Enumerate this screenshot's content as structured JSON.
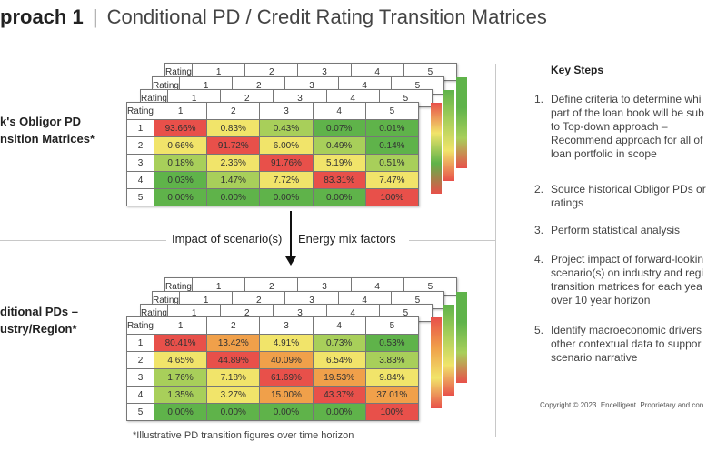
{
  "title": {
    "bold": "proach 1",
    "separator": "|",
    "rest": "Conditional PD / Credit Rating Transition Matrices"
  },
  "top_label": [
    "k's Obligor PD",
    "nsition Matrices*"
  ],
  "bottom_label": [
    "ditional PDs –",
    "ustry/Region*"
  ],
  "middle": {
    "left": "Impact of scenario(s)",
    "right": "Energy mix factors"
  },
  "footnote": "*Illustrative PD transition figures over time horizon",
  "header_label": "Rating",
  "columns": [
    "1",
    "2",
    "3",
    "4",
    "5"
  ],
  "rows": [
    "1",
    "2",
    "3",
    "4",
    "5"
  ],
  "top_matrix": [
    [
      "93.66%",
      "0.83%",
      "0.43%",
      "0.07%",
      "0.01%"
    ],
    [
      "0.66%",
      "91.72%",
      "6.00%",
      "0.49%",
      "0.14%"
    ],
    [
      "0.18%",
      "2.36%",
      "91.76%",
      "5.19%",
      "0.51%"
    ],
    [
      "0.03%",
      "1.47%",
      "7.72%",
      "83.31%",
      "7.47%"
    ],
    [
      "0.00%",
      "0.00%",
      "0.00%",
      "0.00%",
      "100%"
    ]
  ],
  "top_colors": [
    [
      "r",
      "y",
      "lg",
      "g",
      "g"
    ],
    [
      "y",
      "r",
      "y",
      "lg",
      "g"
    ],
    [
      "lg",
      "y",
      "r",
      "y",
      "lg"
    ],
    [
      "g",
      "lg",
      "y",
      "r",
      "y"
    ],
    [
      "g",
      "g",
      "g",
      "g",
      "r"
    ]
  ],
  "bottom_matrix": [
    [
      "80.41%",
      "13.42%",
      "4.91%",
      "0.73%",
      "0.53%"
    ],
    [
      "4.65%",
      "44.89%",
      "40.09%",
      "6.54%",
      "3.83%"
    ],
    [
      "1.76%",
      "7.18%",
      "61.69%",
      "19.53%",
      "9.84%"
    ],
    [
      "1.35%",
      "3.27%",
      "15.00%",
      "43.37%",
      "37.01%"
    ],
    [
      "0.00%",
      "0.00%",
      "0.00%",
      "0.00%",
      "100%"
    ]
  ],
  "bottom_colors": [
    [
      "r",
      "o",
      "y",
      "lg",
      "g"
    ],
    [
      "y",
      "r",
      "o",
      "y",
      "lg"
    ],
    [
      "lg",
      "y",
      "r",
      "o",
      "y"
    ],
    [
      "lg",
      "y",
      "o",
      "r",
      "o"
    ],
    [
      "g",
      "g",
      "g",
      "g",
      "r"
    ]
  ],
  "key_steps": {
    "title": "Key Steps",
    "items": [
      {
        "num": "1.",
        "text": "Define criteria to determine whi\npart of the loan book will be sub\nto Top-down approach –\nRecommend approach for all of\nloan portfolio in scope"
      },
      {
        "num": "2.",
        "text": "Source historical Obligor PDs or\nratings"
      },
      {
        "num": "3.",
        "text": "Perform statistical analysis"
      },
      {
        "num": "4.",
        "text": "Project impact of forward-lookin\nscenario(s) on industry and regi\ntransition matrices for each yea\nover 10 year horizon"
      },
      {
        "num": "5.",
        "text": "Identify macroeconomic drivers\nother contextual data to suppor\nscenario narrative"
      }
    ]
  },
  "copyright": "Copyright © 2023. Encelligent. Proprietary and con"
}
